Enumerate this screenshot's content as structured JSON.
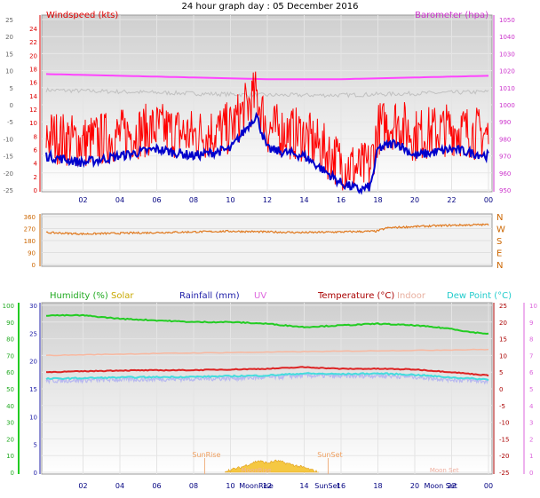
{
  "title": "24 hour graph day : 05 December 2016",
  "x_ticks": [
    "02",
    "04",
    "06",
    "08",
    "10",
    "12",
    "14",
    "16",
    "18",
    "20",
    "22",
    "00"
  ],
  "panel1": {
    "label_left": "Windspeed (kts)",
    "label_right": "Barometer (hpa)",
    "left_scale_a": [
      "24",
      "22",
      "20",
      "18",
      "16",
      "14",
      "12",
      "10",
      "8",
      "6",
      "4",
      "2",
      "0"
    ],
    "left_scale_b": [
      "25",
      "20",
      "15",
      "10",
      "5",
      "0",
      "-5",
      "-10",
      "-15",
      "-20",
      "-25"
    ],
    "right_scale": [
      "1050",
      "1040",
      "1030",
      "1020",
      "1010",
      "1000",
      "990",
      "980",
      "970",
      "960",
      "950"
    ],
    "right_scale_b": [
      "980",
      "970",
      "960"
    ]
  },
  "panel2": {
    "left_scale": [
      "360",
      "270",
      "180",
      "90",
      "0"
    ],
    "right_scale": [
      "N",
      "W",
      "S",
      "E",
      "N"
    ]
  },
  "panel3": {
    "labels": {
      "humidity": "Humidity (%)",
      "solar": "Solar",
      "rainfall": "Rainfall (mm)",
      "uv": "UV",
      "temperature": "Temperature (°C)",
      "indoor": "Indoor",
      "dewpoint": "Dew Point (°C)"
    },
    "humidity_scale": [
      "100",
      "90",
      "80",
      "70",
      "60",
      "50",
      "40",
      "30",
      "20",
      "10",
      "0"
    ],
    "rain_scale": [
      "30",
      "25",
      "20",
      "15",
      "10",
      "5",
      "0"
    ],
    "temp_scale": [
      "25",
      "20",
      "15",
      "10",
      "5",
      "0",
      "-5",
      "-10",
      "-15",
      "-20",
      "-25"
    ],
    "uv_scale": [
      "10",
      "9",
      "8",
      "7",
      "6",
      "5",
      "4",
      "3",
      "2",
      "1",
      "0"
    ],
    "sun_labels": [
      "SunRise",
      "SunSet"
    ],
    "moon_labels": [
      "MoonRise",
      "Moon Set"
    ],
    "axis_labels": [
      "MoonRise",
      "SunSet",
      "Moon Set"
    ]
  },
  "colors": {
    "wind_gust": "#ff0000",
    "wind_avg": "#0000cc",
    "barometer": "#ff44ff",
    "baro_b": "#c0c0c0",
    "direction": "#e07a20",
    "humidity": "#22cc22",
    "solar": "#f5c842",
    "temperature": "#dd2222",
    "indoor": "#f8b8a0",
    "dewpoint": "#44dddd",
    "dew_light": "#b8b8f0"
  },
  "chart_data": [
    {
      "type": "line",
      "title": "24 hour graph day : 05 December 2016",
      "x_label": "",
      "x_ticks": [
        "02",
        "04",
        "06",
        "08",
        "10",
        "12",
        "14",
        "16",
        "18",
        "20",
        "22",
        "00"
      ],
      "series": [
        {
          "name": "Windspeed (kts)",
          "hours": [
            0,
            2,
            4,
            6,
            8,
            10,
            11.4,
            12,
            14,
            15,
            16,
            17,
            17.6,
            18,
            19,
            20,
            22,
            24
          ],
          "values": [
            5,
            4,
            5,
            6,
            5,
            6,
            11,
            6,
            5,
            3,
            1,
            0,
            0.5,
            6,
            7,
            5,
            6,
            5
          ]
        },
        {
          "name": "Barometer (hpa)",
          "hours": [
            0,
            4,
            8,
            12,
            16,
            20,
            24
          ],
          "values": [
            1018,
            1017,
            1016,
            1015,
            1015,
            1016,
            1017
          ]
        }
      ],
      "ylim_wind": [
        0,
        25
      ],
      "ylim_baro": [
        950,
        1050
      ]
    },
    {
      "type": "line",
      "series": [
        {
          "name": "Wind direction",
          "hours": [
            0,
            2,
            4,
            6,
            8,
            10,
            12,
            14,
            16,
            17.9,
            18.5,
            20,
            22,
            24
          ],
          "values": [
            240,
            230,
            235,
            240,
            245,
            250,
            245,
            240,
            245,
            250,
            275,
            285,
            295,
            300
          ]
        }
      ],
      "ylim": [
        0,
        360
      ]
    },
    {
      "type": "line",
      "series": [
        {
          "name": "Humidity (%)",
          "hours": [
            0,
            2,
            4,
            6,
            8,
            10,
            12,
            14,
            16,
            18,
            20,
            22,
            23,
            24
          ],
          "values": [
            94,
            94,
            92,
            91,
            90,
            90,
            89,
            87,
            88,
            89,
            88,
            86,
            84,
            83
          ]
        },
        {
          "name": "Temperature (°C)",
          "hours": [
            0,
            4,
            8,
            12,
            14,
            16,
            18,
            20,
            22,
            24
          ],
          "values": [
            5,
            5.5,
            5.6,
            6,
            6.5,
            6,
            6,
            5.8,
            5,
            4
          ]
        },
        {
          "name": "Indoor",
          "hours": [
            0,
            6,
            12,
            18,
            24
          ],
          "values": [
            10,
            10.6,
            11,
            11.4,
            11.8
          ]
        },
        {
          "name": "Dew Point (°C)",
          "hours": [
            0,
            4,
            8,
            12,
            14,
            16,
            18,
            20,
            22,
            24
          ],
          "values": [
            3,
            3.4,
            3.6,
            4,
            4.6,
            4.4,
            4.6,
            4.2,
            3.4,
            2.8
          ]
        },
        {
          "name": "Solar",
          "hours": [
            9.7,
            10.5,
            11,
            11.5,
            12,
            12.5,
            13,
            14,
            14.8
          ],
          "values": [
            0.5,
            2,
            3.5,
            5,
            4,
            5,
            4,
            2,
            0
          ]
        }
      ],
      "ylim_humidity": [
        0,
        100
      ],
      "ylim_temp": [
        -25,
        25
      ]
    }
  ]
}
